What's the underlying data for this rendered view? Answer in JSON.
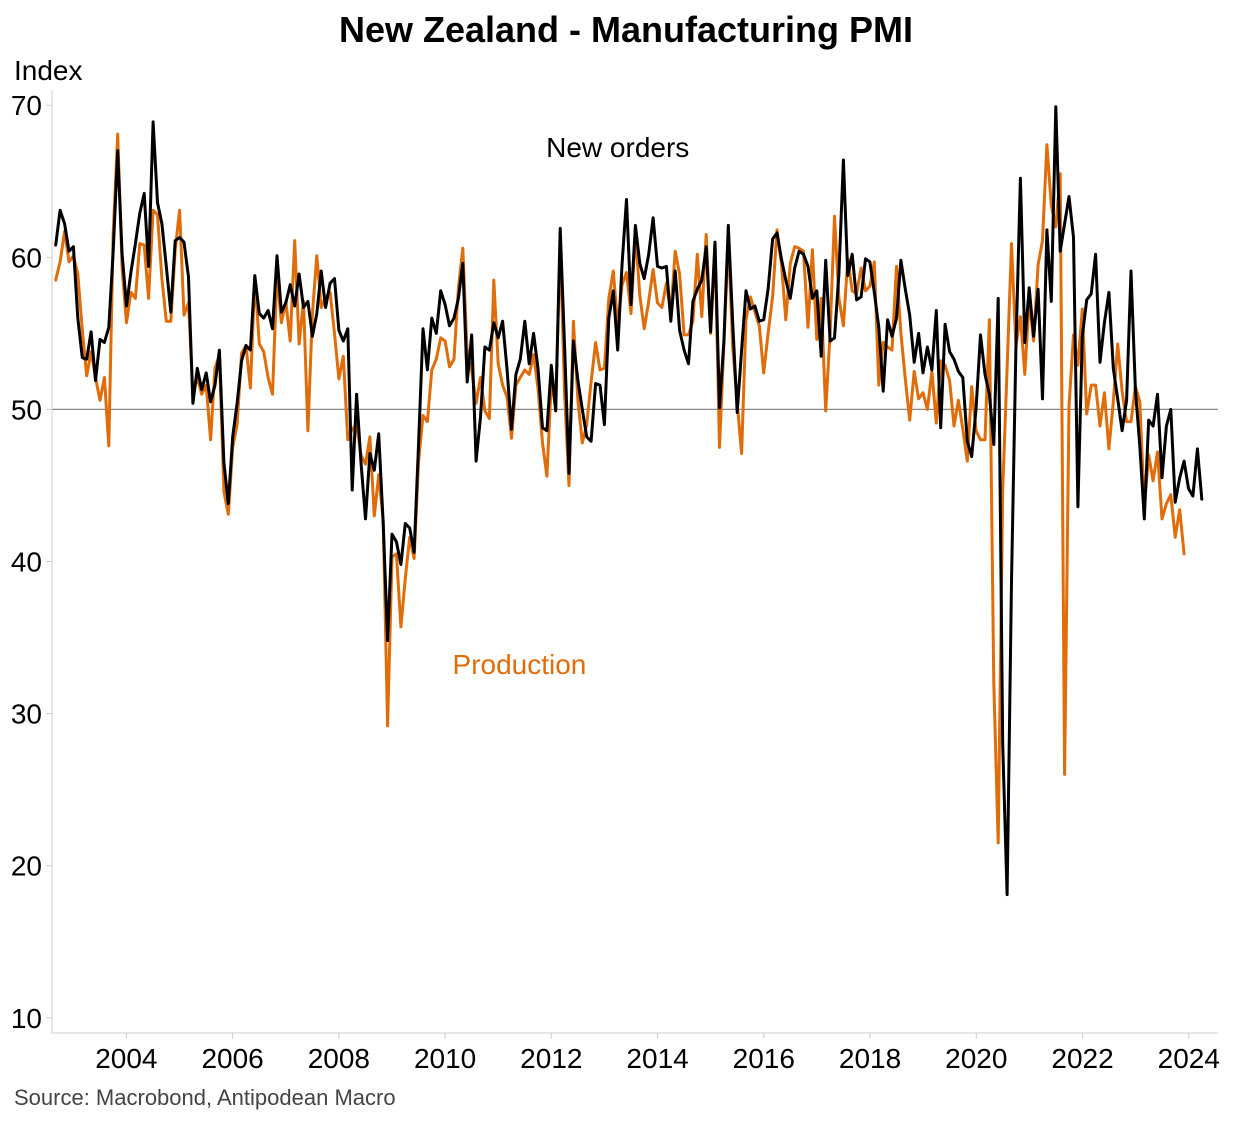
{
  "chart_data": {
    "type": "line",
    "title": "New Zealand - Manufacturing PMI",
    "ylabel": "Index",
    "xlabel": "",
    "ylim": [
      9,
      71
    ],
    "xlim": [
      2002.6,
      2024.55
    ],
    "yticks": [
      10,
      20,
      30,
      40,
      50,
      60,
      70
    ],
    "xticks": [
      "2004",
      "2006",
      "2008",
      "2010",
      "2012",
      "2014",
      "2016",
      "2018",
      "2020",
      "2022",
      "2024"
    ],
    "xtick_years": [
      2004,
      2006,
      2008,
      2010,
      2012,
      2014,
      2016,
      2018,
      2020,
      2022,
      2024
    ],
    "reference_line": 50,
    "source": "Source: Macrobond, Antipodean Macro",
    "series": [
      {
        "name": "New orders",
        "color": "#000000",
        "start": 2002.67,
        "step": 0.0833,
        "values": [
          60.8,
          63.1,
          62.2,
          60.4,
          60.7,
          56.0,
          53.4,
          53.3,
          55.1,
          51.9,
          54.6,
          54.4,
          55.4,
          60.4,
          67.0,
          60.2,
          56.8,
          59.0,
          60.9,
          62.9,
          64.2,
          59.4,
          68.9,
          63.6,
          62.2,
          59.4,
          56.4,
          61.1,
          61.3,
          61.0,
          58.7,
          50.4,
          52.7,
          51.3,
          52.4,
          50.5,
          51.6,
          53.9,
          46.5,
          43.8,
          48.2,
          50.4,
          53.2,
          54.2,
          53.9,
          58.8,
          56.3,
          56.0,
          56.5,
          55.3,
          60.1,
          56.4,
          57.0,
          58.2,
          56.8,
          58.9,
          56.7,
          57.1,
          54.8,
          56.3,
          59.1,
          56.7,
          58.3,
          58.6,
          55.2,
          54.5,
          55.3,
          44.7,
          51.0,
          46.5,
          42.8,
          47.1,
          46.0,
          48.4,
          42.5,
          34.8,
          41.8,
          41.3,
          39.8,
          42.5,
          42.2,
          40.6,
          47.8,
          55.3,
          52.6,
          56.0,
          55.0,
          57.8,
          56.9,
          55.5,
          56.0,
          57.3,
          59.6,
          51.8,
          54.9,
          46.6,
          49.5,
          54.1,
          53.9,
          55.7,
          54.7,
          55.8,
          52.6,
          48.7,
          52.3,
          53.3,
          55.8,
          53.0,
          55.0,
          52.7,
          48.8,
          48.6,
          52.9,
          49.9,
          61.9,
          54.1,
          45.8,
          54.5,
          51.9,
          50.0,
          48.2,
          47.9,
          51.7,
          51.6,
          49.0,
          56.0,
          57.8,
          53.9,
          59.6,
          63.8,
          56.9,
          62.1,
          59.6,
          58.6,
          60.2,
          62.6,
          59.4,
          59.3,
          59.4,
          55.8,
          59.1,
          55.2,
          53.9,
          53.0,
          57.1,
          57.9,
          58.5,
          60.7,
          55.1,
          61.0,
          50.1,
          54.5,
          62.1,
          55.7,
          49.8,
          53.9,
          57.8,
          56.6,
          56.8,
          55.8,
          55.9,
          57.9,
          61.2,
          61.6,
          59.9,
          58.5,
          57.3,
          59.3,
          60.4,
          60.2,
          59.4,
          57.3,
          57.8,
          53.5,
          59.8,
          54.5,
          54.7,
          58.9,
          66.4,
          58.8,
          60.2,
          57.2,
          57.4,
          59.9,
          59.7,
          57.7,
          55.4,
          51.2,
          55.9,
          54.8,
          56.0,
          59.8,
          57.9,
          56.2,
          53.1,
          55.0,
          52.4,
          54.1,
          52.6,
          56.5,
          48.8,
          55.6,
          53.8,
          53.3,
          52.5,
          52.1,
          47.9,
          46.9,
          50.1,
          54.9,
          52.3,
          51.0,
          47.7,
          57.3,
          28.0,
          18.1,
          38.7,
          54.0,
          65.2,
          54.4,
          58.0,
          54.8,
          57.9,
          50.7,
          61.8,
          57.1,
          69.9,
          60.4,
          62.2,
          64.0,
          61.3,
          43.6,
          54.8,
          57.2,
          57.6,
          60.2,
          53.1,
          55.7,
          57.7,
          52.7,
          50.7,
          48.6,
          50.6,
          59.1,
          51.3,
          47.6,
          42.8,
          49.3,
          48.9,
          51.0,
          45.5,
          48.9,
          50.0,
          43.9,
          45.5,
          46.6,
          44.8,
          44.3,
          47.4,
          44.1
        ]
      },
      {
        "name": "Production",
        "color": "#E06C0A",
        "start": 2002.67,
        "step": 0.0833,
        "values": [
          58.5,
          59.7,
          61.7,
          59.7,
          60.1,
          58.9,
          55.2,
          52.2,
          53.8,
          52.1,
          50.6,
          52.1,
          47.6,
          61.6,
          68.1,
          59.3,
          55.7,
          57.7,
          57.3,
          60.9,
          60.8,
          57.3,
          63.1,
          62.8,
          58.6,
          55.8,
          55.8,
          60.5,
          63.1,
          56.2,
          57.0,
          51.0,
          52.1,
          51.0,
          51.6,
          48.0,
          52.7,
          53.6,
          44.6,
          43.1,
          47.5,
          49.0,
          53.7,
          54.2,
          51.4,
          58.7,
          54.3,
          53.8,
          52.1,
          51.0,
          58.9,
          55.7,
          57.1,
          54.5,
          61.1,
          54.3,
          57.1,
          48.6,
          56.3,
          60.1,
          56.7,
          57.4,
          57.7,
          55.0,
          52.0,
          53.5,
          48.0,
          48.7,
          49.0,
          47.0,
          46.4,
          48.2,
          43.0,
          45.7,
          42.7,
          29.2,
          40.3,
          40.5,
          35.7,
          38.9,
          41.6,
          40.2,
          46.6,
          49.6,
          49.2,
          52.6,
          53.3,
          54.7,
          54.5,
          52.8,
          53.3,
          58.0,
          60.6,
          53.6,
          52.6,
          50.4,
          52.1,
          49.9,
          49.4,
          58.5,
          53.0,
          51.6,
          50.8,
          48.1,
          51.6,
          52.1,
          52.6,
          52.3,
          53.6,
          51.4,
          47.8,
          45.6,
          51.8,
          50.1,
          61.0,
          51.0,
          45.0,
          55.8,
          50.6,
          47.8,
          49.0,
          51.8,
          54.4,
          52.6,
          52.7,
          57.3,
          59.1,
          55.5,
          58.2,
          59.0,
          56.3,
          61.6,
          57.5,
          55.3,
          57.1,
          59.2,
          57.0,
          56.7,
          58.3,
          56.3,
          60.4,
          58.9,
          54.9,
          54.9,
          55.8,
          60.2,
          56.1,
          61.5,
          55.0,
          60.9,
          47.5,
          54.3,
          61.3,
          54.1,
          50.4,
          47.1,
          55.9,
          57.4,
          56.4,
          55.5,
          52.4,
          55.0,
          57.4,
          61.8,
          59.6,
          55.9,
          59.6,
          60.7,
          60.6,
          60.4,
          55.4,
          60.5,
          54.6,
          57.3,
          49.9,
          55.0,
          62.7,
          57.3,
          55.5,
          59.9,
          57.8,
          57.6,
          59.3,
          57.8,
          58.1,
          59.7,
          51.6,
          54.4,
          54.1,
          53.9,
          59.4,
          55.0,
          52.0,
          49.3,
          52.5,
          50.7,
          51.1,
          50.0,
          52.5,
          49.1,
          53.2,
          52.9,
          51.9,
          48.9,
          50.6,
          48.7,
          46.6,
          51.5,
          48.6,
          48.0,
          48.0,
          55.9,
          32.0,
          21.5,
          44.6,
          52.7,
          60.9,
          54.2,
          56.1,
          52.3,
          57.2,
          54.5,
          59.5,
          61.1,
          67.4,
          63.4,
          62.0,
          65.5,
          26.0,
          50.2,
          54.9,
          52.9,
          56.6,
          49.7,
          51.6,
          51.6,
          48.9,
          51.1,
          47.4,
          50.5,
          54.3,
          51.2,
          49.2,
          49.2,
          51.5,
          50.5,
          43.6,
          47.0,
          45.3,
          47.2,
          42.8,
          43.8,
          44.4,
          41.6,
          43.4,
          40.5
        ]
      }
    ],
    "annotations": [
      {
        "series": "New orders",
        "text": "New orders",
        "x": 2013.25,
        "y": 66.6
      },
      {
        "series": "Production",
        "text": "Production",
        "x": 2011.4,
        "y": 32.6
      }
    ]
  }
}
